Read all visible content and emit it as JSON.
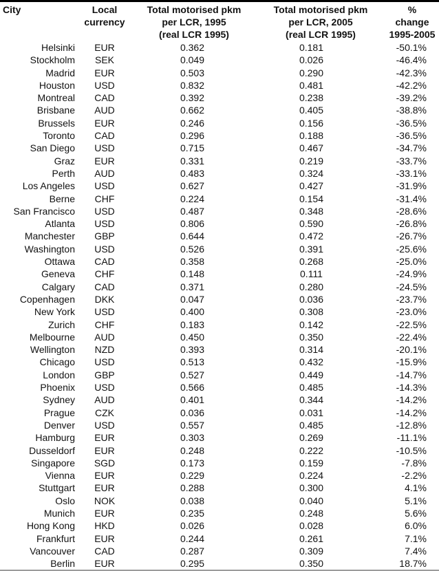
{
  "colors": {
    "text": "#111111",
    "background": "#ffffff",
    "top_rule": "#000000",
    "bottom_rule": "#9b9b9b"
  },
  "chart_data": {
    "type": "table",
    "columns": [
      {
        "id": "city",
        "label": "City",
        "lines": [
          "City"
        ]
      },
      {
        "id": "local-currency",
        "label": "Local currency",
        "lines": [
          "Local",
          "currency"
        ]
      },
      {
        "id": "pkm-1995",
        "label": "Total motorised pkm per LCR, 1995 (real LCR 1995)",
        "lines": [
          "Total motorised pkm",
          "per LCR, 1995",
          "(real LCR 1995)"
        ]
      },
      {
        "id": "pkm-2005",
        "label": "Total motorised pkm per LCR, 2005 (real LCR 1995)",
        "lines": [
          "Total motorised pkm",
          "per LCR, 2005",
          "(real LCR 1995)"
        ]
      },
      {
        "id": "pct-change",
        "label": "% change 1995-2005",
        "lines": [
          "%",
          "change",
          "1995-2005"
        ]
      }
    ],
    "rows": [
      [
        "Helsinki",
        "EUR",
        "0.362",
        "0.181",
        "-50.1%"
      ],
      [
        "Stockholm",
        "SEK",
        "0.049",
        "0.026",
        "-46.4%"
      ],
      [
        "Madrid",
        "EUR",
        "0.503",
        "0.290",
        "-42.3%"
      ],
      [
        "Houston",
        "USD",
        "0.832",
        "0.481",
        "-42.2%"
      ],
      [
        "Montreal",
        "CAD",
        "0.392",
        "0.238",
        "-39.2%"
      ],
      [
        "Brisbane",
        "AUD",
        "0.662",
        "0.405",
        "-38.8%"
      ],
      [
        "Brussels",
        "EUR",
        "0.246",
        "0.156",
        "-36.5%"
      ],
      [
        "Toronto",
        "CAD",
        "0.296",
        "0.188",
        "-36.5%"
      ],
      [
        "San Diego",
        "USD",
        "0.715",
        "0.467",
        "-34.7%"
      ],
      [
        "Graz",
        "EUR",
        "0.331",
        "0.219",
        "-33.7%"
      ],
      [
        "Perth",
        "AUD",
        "0.483",
        "0.324",
        "-33.1%"
      ],
      [
        "Los Angeles",
        "USD",
        "0.627",
        "0.427",
        "-31.9%"
      ],
      [
        "Berne",
        "CHF",
        "0.224",
        "0.154",
        "-31.4%"
      ],
      [
        "San Francisco",
        "USD",
        "0.487",
        "0.348",
        "-28.6%"
      ],
      [
        "Atlanta",
        "USD",
        "0.806",
        "0.590",
        "-26.8%"
      ],
      [
        "Manchester",
        "GBP",
        "0.644",
        "0.472",
        "-26.7%"
      ],
      [
        "Washington",
        "USD",
        "0.526",
        "0.391",
        "-25.6%"
      ],
      [
        "Ottawa",
        "CAD",
        "0.358",
        "0.268",
        "-25.0%"
      ],
      [
        "Geneva",
        "CHF",
        "0.148",
        "0.111",
        "-24.9%"
      ],
      [
        "Calgary",
        "CAD",
        "0.371",
        "0.280",
        "-24.5%"
      ],
      [
        "Copenhagen",
        "DKK",
        "0.047",
        "0.036",
        "-23.7%"
      ],
      [
        "New York",
        "USD",
        "0.400",
        "0.308",
        "-23.0%"
      ],
      [
        "Zurich",
        "CHF",
        "0.183",
        "0.142",
        "-22.5%"
      ],
      [
        "Melbourne",
        "AUD",
        "0.450",
        "0.350",
        "-22.4%"
      ],
      [
        "Wellington",
        "NZD",
        "0.393",
        "0.314",
        "-20.1%"
      ],
      [
        "Chicago",
        "USD",
        "0.513",
        "0.432",
        "-15.9%"
      ],
      [
        "London",
        "GBP",
        "0.527",
        "0.449",
        "-14.7%"
      ],
      [
        "Phoenix",
        "USD",
        "0.566",
        "0.485",
        "-14.3%"
      ],
      [
        "Sydney",
        "AUD",
        "0.401",
        "0.344",
        "-14.2%"
      ],
      [
        "Prague",
        "CZK",
        "0.036",
        "0.031",
        "-14.2%"
      ],
      [
        "Denver",
        "USD",
        "0.557",
        "0.485",
        "-12.8%"
      ],
      [
        "Hamburg",
        "EUR",
        "0.303",
        "0.269",
        "-11.1%"
      ],
      [
        "Dusseldorf",
        "EUR",
        "0.248",
        "0.222",
        "-10.5%"
      ],
      [
        "Singapore",
        "SGD",
        "0.173",
        "0.159",
        "-7.8%"
      ],
      [
        "Vienna",
        "EUR",
        "0.229",
        "0.224",
        "-2.2%"
      ],
      [
        "Stuttgart",
        "EUR",
        "0.288",
        "0.300",
        "4.1%"
      ],
      [
        "Oslo",
        "NOK",
        "0.038",
        "0.040",
        "5.1%"
      ],
      [
        "Munich",
        "EUR",
        "0.235",
        "0.248",
        "5.6%"
      ],
      [
        "Hong Kong",
        "HKD",
        "0.026",
        "0.028",
        "6.0%"
      ],
      [
        "Frankfurt",
        "EUR",
        "0.244",
        "0.261",
        "7.1%"
      ],
      [
        "Vancouver",
        "CAD",
        "0.287",
        "0.309",
        "7.4%"
      ],
      [
        "Berlin",
        "EUR",
        "0.295",
        "0.350",
        "18.7%"
      ]
    ]
  }
}
